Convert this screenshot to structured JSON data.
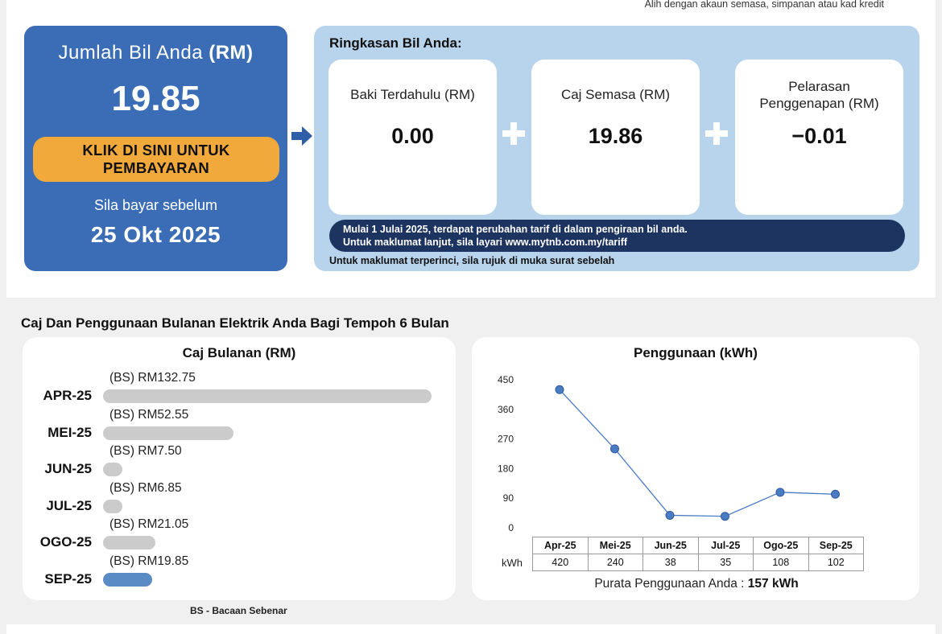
{
  "top_note": "Alih dengan akaun semasa, simpanan atau kad kredit",
  "total": {
    "title": "Jumlah Bil Anda",
    "title_unit": "(RM)",
    "amount": "19.85",
    "pay_button": "KLIK DI SINI UNTUK PEMBAYARAN",
    "due_label": "Sila bayar sebelum",
    "due_date": "25 Okt 2025"
  },
  "summary": {
    "title": "Ringkasan Bil Anda:",
    "items": [
      {
        "label": "Baki Terdahulu (RM)",
        "value": "0.00"
      },
      {
        "label": "Caj Semasa (RM)",
        "value": "19.86"
      },
      {
        "label": "Pelarasan Penggenapan (RM)",
        "value": "−0.01"
      }
    ],
    "banner_line1": "Mulai 1 Julai 2025, terdapat perubahan tarif di dalam pengiraan bil anda.",
    "banner_line2": "Untuk maklumat lanjut, sila layari www.mytnb.com.my/tariff",
    "detail_note": "Untuk maklumat terperinci, sila rujuk di muka surat sebelah"
  },
  "section_title": "Caj Dan Penggunaan Bulanan Elektrik Anda Bagi Tempoh 6 Bulan",
  "monthly_charges": {
    "title": "Caj Bulanan (RM)",
    "legend": "BS - Bacaan Sebenar",
    "rows": [
      {
        "month": "APR-25",
        "label": "(BS) RM132.75",
        "value": 132.75
      },
      {
        "month": "MEI-25",
        "label": "(BS) RM52.55",
        "value": 52.55
      },
      {
        "month": "JUN-25",
        "label": "(BS) RM7.50",
        "value": 7.5
      },
      {
        "month": "JUL-25",
        "label": "(BS) RM6.85",
        "value": 6.85
      },
      {
        "month": "OGO-25",
        "label": "(BS) RM21.05",
        "value": 21.05
      },
      {
        "month": "SEP-25",
        "label": "(BS) RM19.85",
        "value": 19.85
      }
    ]
  },
  "usage": {
    "title": "Penggunaan (kWh)",
    "unit_label": "kWh",
    "average_label": "Purata Penggunaan Anda :",
    "average_value": "157 kWh"
  },
  "colors": {
    "primary_blue": "#3a6db5",
    "summary_bg": "#b8d3ec",
    "pay_button": "#f2a93b",
    "banner": "#1d3461",
    "bar_default": "#cbcbcb",
    "bar_current": "#5b8bc5",
    "line": "#4a7cc4"
  },
  "chart_data": [
    {
      "type": "bar",
      "title": "Caj Bulanan (RM)",
      "categories": [
        "APR-25",
        "MEI-25",
        "JUN-25",
        "JUL-25",
        "OGO-25",
        "SEP-25"
      ],
      "values": [
        132.75,
        52.55,
        7.5,
        6.85,
        21.05,
        19.85
      ]
    },
    {
      "type": "line",
      "title": "Penggunaan (kWh)",
      "categories": [
        "Apr-25",
        "Mei-25",
        "Jun-25",
        "Jul-25",
        "Ogo-25",
        "Sep-25"
      ],
      "values": [
        420,
        240,
        38,
        35,
        108,
        102
      ],
      "yticks": [
        "450",
        "360",
        "270",
        "180",
        "90",
        "0"
      ],
      "ylim": [
        0,
        450
      ],
      "grid": false
    }
  ]
}
